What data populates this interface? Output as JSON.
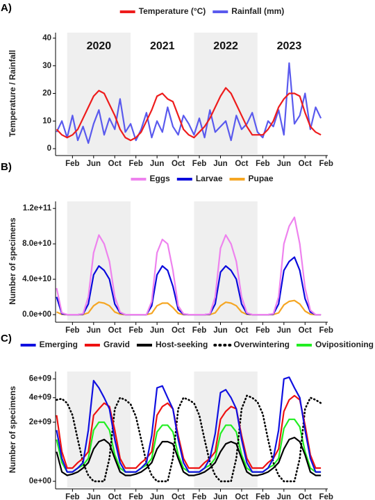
{
  "chart_data": [
    {
      "type": "line",
      "panel_label": "A)",
      "ylabel": "Temperature / Rainfall",
      "x": [
        -2,
        -1,
        0,
        1,
        2,
        3,
        4,
        5,
        6,
        7,
        8,
        9,
        10,
        11,
        12,
        13,
        14,
        15,
        16,
        17,
        18,
        19,
        20,
        21,
        22,
        23,
        24,
        25,
        26,
        27,
        28,
        29,
        30,
        31,
        32,
        33,
        34,
        35,
        36,
        37,
        38,
        39,
        40,
        41,
        42,
        43,
        44,
        45,
        46,
        47,
        48
      ],
      "xlim": [
        -2.2,
        49.3
      ],
      "xticks": [
        {
          "value": 1,
          "label": "Feb"
        },
        {
          "value": 5,
          "label": "Jun"
        },
        {
          "value": 9,
          "label": "Oct"
        },
        {
          "value": 13,
          "label": "Feb"
        },
        {
          "value": 17,
          "label": "Jun"
        },
        {
          "value": 21,
          "label": "Oct"
        },
        {
          "value": 25,
          "label": "Feb"
        },
        {
          "value": 29,
          "label": "Jun"
        },
        {
          "value": 33,
          "label": "Oct"
        },
        {
          "value": 37,
          "label": "Feb"
        },
        {
          "value": 41,
          "label": "Jun"
        },
        {
          "value": 45,
          "label": "Oct"
        },
        {
          "value": 49,
          "label": "Feb"
        }
      ],
      "ylim": [
        -2,
        42
      ],
      "yticks": [
        0,
        10,
        20,
        30,
        40
      ],
      "yscale": "linear",
      "shaded": [
        [
          0,
          12
        ],
        [
          24,
          36
        ]
      ],
      "annotations": [
        {
          "text": "2020",
          "x": 6
        },
        {
          "text": "2021",
          "x": 18
        },
        {
          "text": "2022",
          "x": 30
        },
        {
          "text": "2023",
          "x": 42
        }
      ],
      "series": [
        {
          "name": "Temperature (°C)",
          "color": "#ee1c1c",
          "values": [
            7,
            5,
            4,
            5,
            7,
            11,
            15,
            19,
            21,
            20,
            16,
            12,
            7,
            4,
            3,
            4,
            6,
            10,
            14,
            19,
            20,
            18,
            17,
            12,
            7,
            5,
            4,
            6,
            8,
            11,
            15,
            19,
            22,
            20,
            16,
            12,
            8,
            5,
            5,
            5,
            7,
            10,
            15,
            18,
            20,
            20,
            19,
            13,
            8,
            6,
            5
          ]
        },
        {
          "name": "Rainfall (mm)",
          "color": "#5a5aee",
          "values": [
            6,
            10,
            4,
            12,
            3,
            8,
            2,
            9,
            14,
            5,
            11,
            7,
            18,
            6,
            9,
            3,
            7,
            13,
            4,
            10,
            6,
            15,
            8,
            5,
            12,
            9,
            5,
            11,
            4,
            14,
            6,
            8,
            10,
            3,
            12,
            7,
            9,
            13,
            6,
            4,
            10,
            8,
            14,
            5,
            31,
            9,
            12,
            20,
            7,
            15,
            11
          ]
        }
      ]
    },
    {
      "type": "line",
      "panel_label": "B)",
      "ylabel": "Number of specimens",
      "x": [
        -2,
        -1,
        0,
        1,
        2,
        3,
        4,
        5,
        6,
        7,
        8,
        9,
        10,
        11,
        12,
        13,
        14,
        15,
        16,
        17,
        18,
        19,
        20,
        21,
        22,
        23,
        24,
        25,
        26,
        27,
        28,
        29,
        30,
        31,
        32,
        33,
        34,
        35,
        36,
        37,
        38,
        39,
        40,
        41,
        42,
        43,
        44,
        45,
        46,
        47,
        48
      ],
      "xlim": [
        -2.2,
        49.3
      ],
      "xticks": [
        {
          "value": 1,
          "label": "Feb"
        },
        {
          "value": 5,
          "label": "Jun"
        },
        {
          "value": 9,
          "label": "Oct"
        },
        {
          "value": 13,
          "label": "Feb"
        },
        {
          "value": 17,
          "label": "Jun"
        },
        {
          "value": 21,
          "label": "Oct"
        },
        {
          "value": 25,
          "label": "Feb"
        },
        {
          "value": 29,
          "label": "Jun"
        },
        {
          "value": 33,
          "label": "Oct"
        },
        {
          "value": 37,
          "label": "Feb"
        },
        {
          "value": 41,
          "label": "Jun"
        },
        {
          "value": 45,
          "label": "Oct"
        },
        {
          "value": 49,
          "label": "Feb"
        }
      ],
      "ylim": [
        -7000000000.0,
        128000000000.0
      ],
      "yscale": "linear",
      "yticks": [
        {
          "value": 0,
          "label": "0.0e+00"
        },
        {
          "value": 40000000000.0,
          "label": "4.0e+10"
        },
        {
          "value": 80000000000.0,
          "label": "8.0e+10"
        },
        {
          "value": 120000000000.0,
          "label": "1.2e+11"
        }
      ],
      "shaded": [
        [
          0,
          12
        ],
        [
          24,
          36
        ]
      ],
      "series": [
        {
          "name": "Eggs",
          "color": "#ee82ee",
          "values": [
            30000000000.0,
            2000000000.0,
            0,
            0,
            0,
            1000000000.0,
            20000000000.0,
            70000000000.0,
            90000000000.0,
            80000000000.0,
            60000000000.0,
            20000000000.0,
            3000000000.0,
            0,
            0,
            0,
            0,
            0,
            15000000000.0,
            70000000000.0,
            85000000000.0,
            80000000000.0,
            50000000000.0,
            10000000000.0,
            1000000000.0,
            0,
            0,
            0,
            0,
            1000000000.0,
            20000000000.0,
            75000000000.0,
            90000000000.0,
            80000000000.0,
            60000000000.0,
            20000000000.0,
            2000000000.0,
            0,
            0,
            0,
            0,
            1000000000.0,
            20000000000.0,
            80000000000.0,
            100000000000.0,
            110000000000.0,
            80000000000.0,
            30000000000.0,
            5000000000.0,
            0,
            0
          ]
        },
        {
          "name": "Larvae",
          "color": "#0a0adc",
          "values": [
            20000000000.0,
            1000000000.0,
            0,
            0,
            0,
            500000000.0,
            12000000000.0,
            45000000000.0,
            55000000000.0,
            50000000000.0,
            40000000000.0,
            12000000000.0,
            2000000000.0,
            0,
            0,
            0,
            0,
            0,
            10000000000.0,
            45000000000.0,
            55000000000.0,
            50000000000.0,
            32000000000.0,
            6000000000.0,
            500000000.0,
            0,
            0,
            0,
            0,
            500000000.0,
            12000000000.0,
            48000000000.0,
            55000000000.0,
            50000000000.0,
            40000000000.0,
            12000000000.0,
            1000000000.0,
            0,
            0,
            0,
            0,
            500000000.0,
            12000000000.0,
            50000000000.0,
            60000000000.0,
            65000000000.0,
            50000000000.0,
            18000000000.0,
            3000000000.0,
            0,
            0
          ]
        },
        {
          "name": "Pupae",
          "color": "#f5a623",
          "values": [
            3000000000.0,
            300000000.0,
            0,
            0,
            0,
            100000000.0,
            2000000000.0,
            10000000000.0,
            14000000000.0,
            13000000000.0,
            10000000000.0,
            3000000000.0,
            500000000.0,
            0,
            0,
            0,
            0,
            0,
            1500000000.0,
            10000000000.0,
            13000000000.0,
            13000000000.0,
            8000000000.0,
            1500000000.0,
            100000000.0,
            0,
            0,
            0,
            0,
            100000000.0,
            2000000000.0,
            10000000000.0,
            14000000000.0,
            13000000000.0,
            10000000000.0,
            3000000000.0,
            300000000.0,
            0,
            0,
            0,
            0,
            100000000.0,
            2000000000.0,
            11000000000.0,
            15000000000.0,
            16000000000.0,
            12000000000.0,
            4000000000.0,
            500000000.0,
            0,
            0
          ]
        }
      ]
    },
    {
      "type": "line",
      "panel_label": "C)",
      "ylabel": "Number of specimens",
      "x": [
        -2,
        -1,
        0,
        1,
        2,
        3,
        4,
        5,
        6,
        7,
        8,
        9,
        10,
        11,
        12,
        13,
        14,
        15,
        16,
        17,
        18,
        19,
        20,
        21,
        22,
        23,
        24,
        25,
        26,
        27,
        28,
        29,
        30,
        31,
        32,
        33,
        34,
        35,
        36,
        37,
        38,
        39,
        40,
        41,
        42,
        43,
        44,
        45,
        46,
        47,
        48
      ],
      "xlim": [
        -2.2,
        49.3
      ],
      "xticks": [
        {
          "value": 1,
          "label": "Feb"
        },
        {
          "value": 5,
          "label": "Jun"
        },
        {
          "value": 9,
          "label": "Oct"
        },
        {
          "value": 13,
          "label": "Feb"
        },
        {
          "value": 17,
          "label": "Jun"
        },
        {
          "value": 21,
          "label": "Oct"
        },
        {
          "value": 25,
          "label": "Feb"
        },
        {
          "value": 29,
          "label": "Jun"
        },
        {
          "value": 33,
          "label": "Oct"
        },
        {
          "value": 37,
          "label": "Feb"
        },
        {
          "value": 41,
          "label": "Jun"
        },
        {
          "value": 45,
          "label": "Oct"
        },
        {
          "value": 49,
          "label": "Feb"
        }
      ],
      "ylim": [
        -22000000.0,
        6900000000.0
      ],
      "yscale": "sqrt",
      "yticks": [
        {
          "value": 0,
          "label": "0e+00"
        },
        {
          "value": 2000000000.0,
          "label": "2e+09"
        },
        {
          "value": 4000000000.0,
          "label": "4e+09"
        },
        {
          "value": 6000000000.0,
          "label": "6e+09"
        }
      ],
      "shaded": [
        [
          0,
          12
        ],
        [
          24,
          36
        ]
      ],
      "series": [
        {
          "name": "Emerging",
          "color": "#1010e0",
          "values": [
            1500000000.0,
            300000000.0,
            50000000.0,
            50000000.0,
            100000000.0,
            200000000.0,
            1500000000.0,
            5800000000.0,
            5000000000.0,
            4000000000.0,
            3000000000.0,
            1000000000.0,
            200000000.0,
            50000000.0,
            50000000.0,
            50000000.0,
            100000000.0,
            200000000.0,
            1200000000.0,
            5000000000.0,
            5200000000.0,
            4000000000.0,
            3000000000.0,
            1000000000.0,
            200000000.0,
            50000000.0,
            50000000.0,
            50000000.0,
            100000000.0,
            300000000.0,
            1300000000.0,
            4500000000.0,
            4800000000.0,
            4000000000.0,
            3000000000.0,
            1000000000.0,
            200000000.0,
            50000000.0,
            50000000.0,
            50000000.0,
            100000000.0,
            300000000.0,
            1500000000.0,
            6000000000.0,
            6200000000.0,
            5000000000.0,
            4000000000.0,
            1500000000.0,
            300000000.0,
            50000000.0,
            50000000.0
          ]
        },
        {
          "name": "Gravid",
          "color": "#ee1111",
          "values": [
            2500000000.0,
            500000000.0,
            100000000.0,
            100000000.0,
            200000000.0,
            300000000.0,
            500000000.0,
            2500000000.0,
            3000000000.0,
            3500000000.0,
            3200000000.0,
            1500000000.0,
            300000000.0,
            100000000.0,
            100000000.0,
            100000000.0,
            200000000.0,
            300000000.0,
            500000000.0,
            2500000000.0,
            3200000000.0,
            3500000000.0,
            3000000000.0,
            1200000000.0,
            300000000.0,
            100000000.0,
            100000000.0,
            100000000.0,
            200000000.0,
            300000000.0,
            500000000.0,
            2200000000.0,
            2800000000.0,
            3200000000.0,
            3000000000.0,
            1200000000.0,
            300000000.0,
            100000000.0,
            100000000.0,
            100000000.0,
            200000000.0,
            300000000.0,
            600000000.0,
            2800000000.0,
            3800000000.0,
            4200000000.0,
            3800000000.0,
            1800000000.0,
            400000000.0,
            100000000.0,
            100000000.0
          ]
        },
        {
          "name": "Host-seeking",
          "color": "#000000",
          "values": [
            500000000.0,
            50000000.0,
            20000000.0,
            30000000.0,
            50000000.0,
            100000000.0,
            200000000.0,
            600000000.0,
            900000000.0,
            1000000000.0,
            800000000.0,
            300000000.0,
            50000000.0,
            20000000.0,
            20000000.0,
            30000000.0,
            50000000.0,
            100000000.0,
            200000000.0,
            600000000.0,
            900000000.0,
            900000000.0,
            800000000.0,
            300000000.0,
            50000000.0,
            20000000.0,
            20000000.0,
            30000000.0,
            50000000.0,
            100000000.0,
            200000000.0,
            500000000.0,
            800000000.0,
            900000000.0,
            800000000.0,
            300000000.0,
            50000000.0,
            20000000.0,
            20000000.0,
            30000000.0,
            50000000.0,
            100000000.0,
            200000000.0,
            600000000.0,
            1000000000.0,
            1100000000.0,
            900000000.0,
            400000000.0,
            50000000.0,
            20000000.0,
            20000000.0
          ]
        },
        {
          "name": "Overwintering",
          "color": "#000000",
          "dash": "dotted",
          "values": [
            3800000000.0,
            3900000000.0,
            3500000000.0,
            2500000000.0,
            1000000000.0,
            200000000.0,
            20000000.0,
            0,
            0,
            0,
            300000000.0,
            3000000000.0,
            4000000000.0,
            3800000000.0,
            3400000000.0,
            2400000000.0,
            1000000000.0,
            200000000.0,
            20000000.0,
            0,
            0,
            0,
            300000000.0,
            3000000000.0,
            4000000000.0,
            3800000000.0,
            3500000000.0,
            2500000000.0,
            1000000000.0,
            200000000.0,
            20000000.0,
            0,
            0,
            0,
            300000000.0,
            3000000000.0,
            4200000000.0,
            4000000000.0,
            3600000000.0,
            2600000000.0,
            1000000000.0,
            200000000.0,
            20000000.0,
            0,
            0,
            0,
            300000000.0,
            3000000000.0,
            4000000000.0,
            3800000000.0,
            3500000000.0
          ]
        },
        {
          "name": "Ovipositioning",
          "color": "#22ee22",
          "values": [
            1000000000.0,
            200000000.0,
            50000000.0,
            50000000.0,
            100000000.0,
            150000000.0,
            300000000.0,
            1500000000.0,
            2000000000.0,
            2000000000.0,
            1500000000.0,
            400000000.0,
            100000000.0,
            50000000.0,
            50000000.0,
            50000000.0,
            100000000.0,
            150000000.0,
            300000000.0,
            1400000000.0,
            1800000000.0,
            1800000000.0,
            1400000000.0,
            400000000.0,
            100000000.0,
            50000000.0,
            50000000.0,
            50000000.0,
            100000000.0,
            150000000.0,
            300000000.0,
            1300000000.0,
            1800000000.0,
            1800000000.0,
            1400000000.0,
            400000000.0,
            100000000.0,
            50000000.0,
            50000000.0,
            50000000.0,
            100000000.0,
            150000000.0,
            300000000.0,
            1600000000.0,
            2200000000.0,
            2200000000.0,
            1700000000.0,
            500000000.0,
            100000000.0,
            50000000.0,
            50000000.0
          ]
        }
      ]
    }
  ]
}
